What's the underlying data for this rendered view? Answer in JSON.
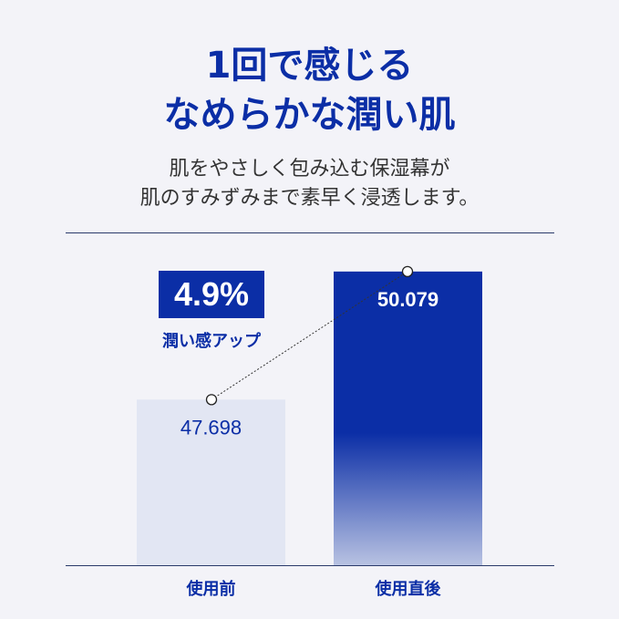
{
  "header": {
    "title_line1": "1回で感じる",
    "title_line2": "なめらかな潤い肌",
    "subtitle_line1": "肌をやさしく包み込む保湿幕が",
    "subtitle_line2": "肌のすみずみまで素早く浸透します。"
  },
  "callout": {
    "value": "4.9%",
    "label": "潤い感アップ"
  },
  "chart_data": {
    "type": "bar",
    "categories": [
      "使用前",
      "使用直後"
    ],
    "values": [
      47.698,
      50.079
    ],
    "value_labels": [
      "47.698",
      "50.079"
    ],
    "ylim": [
      44.62,
      50.5
    ],
    "grid": false,
    "colors": {
      "before": "#e2e6f3",
      "after": "#0b2ea6",
      "accent": "#0b2ea6"
    }
  }
}
